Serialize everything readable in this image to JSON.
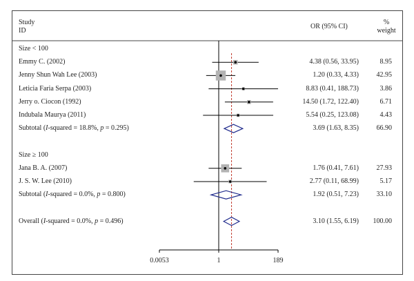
{
  "headers": {
    "study": "Study",
    "id": "ID",
    "or_ci": "OR (95% CI)",
    "pct": "%",
    "weight": "weight"
  },
  "chart_data": {
    "type": "forest",
    "x_scale": "log",
    "x_ticks": [
      {
        "value": 0.0053,
        "label": "0.0053"
      },
      {
        "value": 1,
        "label": "1"
      },
      {
        "value": 189,
        "label": "189"
      }
    ],
    "overall_line": 3.1,
    "rows": [
      {
        "kind": "group",
        "label": "Size < 100"
      },
      {
        "kind": "study",
        "label": "Emmy C. (2002)",
        "or": 4.38,
        "lo": 0.56,
        "hi": 33.95,
        "ci_text": "4.38 (0.56, 33.95)",
        "weight": "8.95",
        "w": 8.95
      },
      {
        "kind": "study",
        "label": "Jenny Shun Wah Lee (2003)",
        "or": 1.2,
        "lo": 0.33,
        "hi": 4.33,
        "ci_text": "1.20 (0.33, 4.33)",
        "weight": "42.95",
        "w": 42.95
      },
      {
        "kind": "study",
        "label": "Leticia Faria Serpa (2003)",
        "or": 8.83,
        "lo": 0.41,
        "hi": 188.73,
        "ci_text": "8.83 (0.41, 188.73)",
        "weight": "3.86",
        "w": 3.86
      },
      {
        "kind": "study",
        "label": "Jerry o. Ciocon (1992)",
        "or": 14.5,
        "lo": 1.72,
        "hi": 122.4,
        "ci_text": "14.50 (1.72, 122.40)",
        "weight": "6.71",
        "w": 6.71
      },
      {
        "kind": "study",
        "label": "Indubala Maurya (2011)",
        "or": 5.54,
        "lo": 0.25,
        "hi": 123.08,
        "ci_text": "5.54 (0.25, 123.08)",
        "weight": "4.43",
        "w": 4.43
      },
      {
        "kind": "subtotal",
        "label_prefix": "Subtotal (",
        "i2_label": "I",
        "label_mid": "-squared = 18.8%, ",
        "p_label": "p",
        "label_suffix": " = 0.295)",
        "or": 3.69,
        "lo": 1.63,
        "hi": 8.35,
        "ci_text": "3.69 (1.63, 8.35)",
        "weight": "66.90"
      },
      {
        "kind": "blank"
      },
      {
        "kind": "group",
        "label": "Size ≥ 100"
      },
      {
        "kind": "study",
        "label": "Jana B. A. (2007)",
        "or": 1.76,
        "lo": 0.41,
        "hi": 7.61,
        "ci_text": "1.76 (0.41, 7.61)",
        "weight": "27.93",
        "w": 27.93
      },
      {
        "kind": "study",
        "label": "J. S. W. Lee (2010)",
        "or": 2.77,
        "lo": 0.11,
        "hi": 68.99,
        "ci_text": "2.77 (0.11, 68.99)",
        "weight": "5.17",
        "w": 5.17
      },
      {
        "kind": "subtotal",
        "label_prefix": "Subtotal (",
        "i2_label": "I",
        "label_mid": "-squared = 0.0%, ",
        "p_label": "p",
        "label_suffix": " = 0.800)",
        "or": 1.92,
        "lo": 0.51,
        "hi": 7.23,
        "ci_text": "1.92 (0.51, 7.23)",
        "weight": "33.10"
      },
      {
        "kind": "blank"
      },
      {
        "kind": "overall",
        "label_prefix": "Overall (",
        "i2_label": "I",
        "label_mid": "-squared = 0.0%, ",
        "p_label": "p",
        "label_suffix": " = 0.496)",
        "or": 3.1,
        "lo": 1.55,
        "hi": 6.19,
        "ci_text": "3.10 (1.55, 6.19)",
        "weight": "100.00"
      }
    ]
  }
}
